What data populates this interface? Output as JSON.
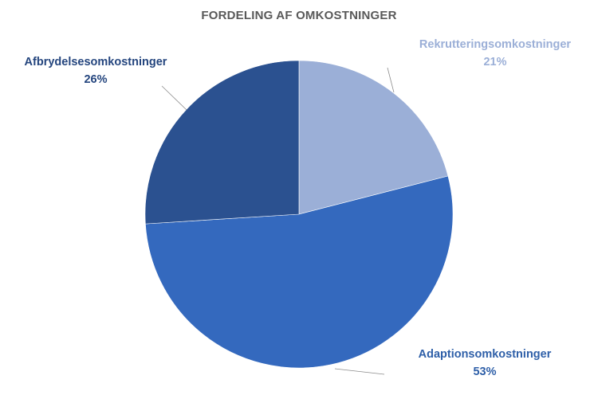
{
  "chart_data": {
    "type": "pie",
    "title": "FORDELING AF OMKOSTNINGER",
    "slices": [
      {
        "label": "Rekrutteringsomkostninger",
        "value": 21,
        "pct_label": "21%",
        "color": "#9bafd7"
      },
      {
        "label": "Adaptionsomkostninger",
        "value": 53,
        "pct_label": "53%",
        "color": "#3469be"
      },
      {
        "label": "Afbrydelsesomkostninger",
        "value": 26,
        "pct_label": "26%",
        "color": "#2b5190"
      }
    ],
    "label_colors": {
      "Rekrutteringsomkostninger": "#9bafd7",
      "Adaptionsomkostninger": "#2e5fa8",
      "Afbrydelsesomkostninger": "#24457e"
    },
    "legend": "none",
    "labels": "outside-with-leader-lines"
  }
}
